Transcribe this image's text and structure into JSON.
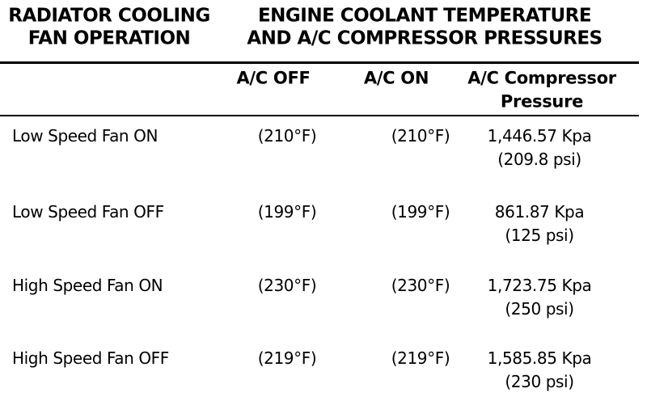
{
  "header": {
    "left": [
      "RADIATOR COOLING",
      "FAN OPERATION"
    ],
    "right": [
      "ENGINE COOLANT TEMPERATURE",
      "AND A/C COMPRESSOR PRESSURES"
    ]
  },
  "table": {
    "columns": [
      [
        "A/C OFF"
      ],
      [
        "A/C ON"
      ],
      [
        "A/C Compressor",
        "Pressure"
      ]
    ],
    "rows": [
      [
        "Low Speed Fan ON",
        "(210°F)",
        "(210°F)",
        [
          "1,446.57 Kpa",
          "(209.8 psi)"
        ]
      ],
      [
        "Low Speed Fan OFF",
        "(199°F)",
        "(199°F)",
        [
          "861.87 Kpa",
          "(125 psi)"
        ]
      ],
      [
        "High Speed Fan ON",
        "(230°F)",
        "(230°F)",
        [
          "1,723.75 Kpa",
          "(250 psi)"
        ]
      ],
      [
        "High Speed Fan OFF",
        "(219°F)",
        "(219°F)",
        [
          "1,585.85 Kpa",
          "(230 psi)"
        ]
      ]
    ]
  }
}
